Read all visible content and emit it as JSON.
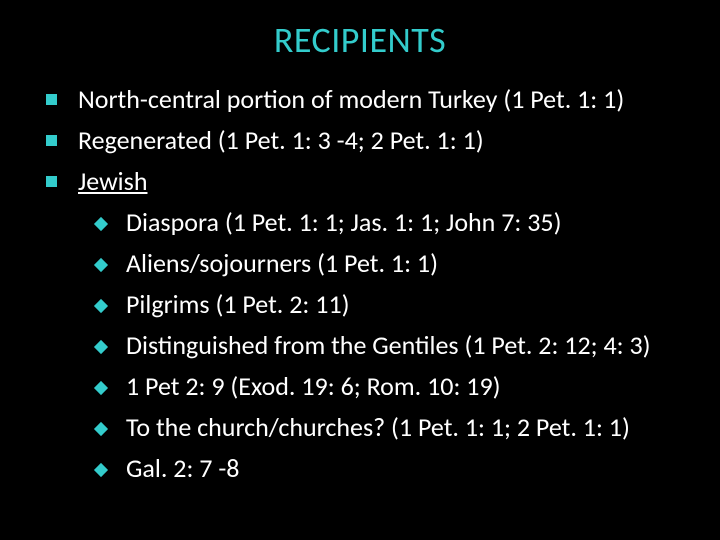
{
  "slide": {
    "background_color": "#000000",
    "accent_color": "#33cccc",
    "text_color": "#ffffff",
    "title": "RECIPIENTS",
    "title_fontsize": 36,
    "body_fontsize": 26,
    "bullets": [
      {
        "text": "North-central portion of modern Turkey (1 Pet. 1: 1)"
      },
      {
        "text": "Regenerated (1 Pet. 1: 3 -4; 2 Pet. 1: 1)"
      },
      {
        "text": "Jewish",
        "underline": true,
        "sub": [
          "Diaspora (1 Pet. 1: 1; Jas. 1: 1; John 7: 35)",
          "Aliens/sojourners (1 Pet. 1: 1)",
          "Pilgrims (1 Pet. 2: 11)",
          "Distinguished from the Gentiles (1 Pet. 2: 12; 4: 3)",
          "1 Pet 2: 9 (Exod. 19: 6; Rom. 10: 19)",
          "To the church/churches? (1 Pet. 1: 1; 2 Pet. 1: 1)",
          "Gal. 2: 7 -8"
        ]
      }
    ]
  }
}
